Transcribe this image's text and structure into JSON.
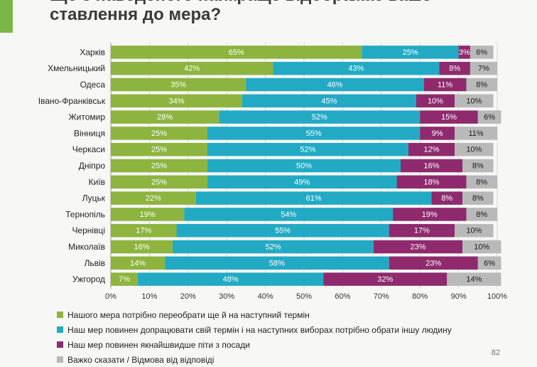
{
  "header": {
    "title": "Що з наведеного найкраще відображає ваше ставлення до мера?"
  },
  "page_number": "82",
  "colors": {
    "reelect": "#8db43e",
    "finish_term": "#22aac4",
    "resign": "#8e2a6d",
    "hard_to_say": "#b9b9b9"
  },
  "chart_data": {
    "type": "bar",
    "orientation": "horizontal",
    "stacked": true,
    "title": "Що з наведеного найкраще відображає ваше ставлення до мера?",
    "categories": [
      "Харків",
      "Хмельницький",
      "Одеса",
      "Івано-Франківськ",
      "Житомир",
      "Вінниця",
      "Черкаси",
      "Дніпро",
      "Київ",
      "Луцьк",
      "Тернопіль",
      "Чернівці",
      "Миколаїв",
      "Львів",
      "Ужгород"
    ],
    "series": [
      {
        "name": "Нашого мера потрібно переобрати ще й на наступний термін",
        "color": "#8db43e",
        "values": [
          65,
          42,
          35,
          34,
          28,
          25,
          25,
          25,
          25,
          22,
          19,
          17,
          16,
          14,
          7
        ]
      },
      {
        "name": "Наш мер повинен допрацювати свій термін і на наступних виборах потрібно обрати іншу людину",
        "color": "#22aac4",
        "values": [
          25,
          43,
          46,
          45,
          52,
          55,
          52,
          50,
          49,
          61,
          54,
          55,
          52,
          58,
          48
        ]
      },
      {
        "name": "Наш мер повинен якнайшвидше піти з посади",
        "color": "#8e2a6d",
        "values": [
          3,
          8,
          11,
          10,
          15,
          9,
          12,
          16,
          18,
          8,
          19,
          17,
          23,
          23,
          32
        ]
      },
      {
        "name": "Важко сказати / Відмова від відповіді",
        "color": "#b9b9b9",
        "values": [
          6,
          7,
          8,
          10,
          6,
          11,
          10,
          8,
          8,
          8,
          8,
          10,
          10,
          6,
          14
        ]
      }
    ],
    "xlim": [
      0,
      100
    ],
    "x_ticks": [
      "0%",
      "10%",
      "20%",
      "30%",
      "40%",
      "50%",
      "60%",
      "70%",
      "80%",
      "90%",
      "100%"
    ],
    "legend_position": "bottom"
  }
}
